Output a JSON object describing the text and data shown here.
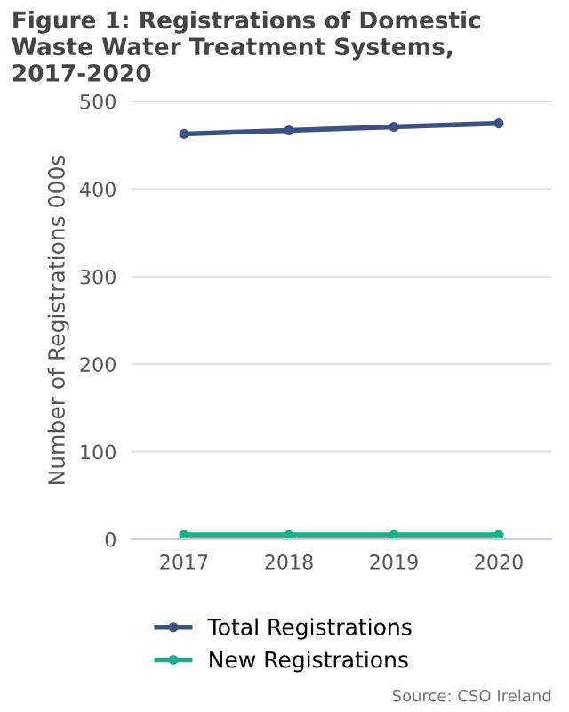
{
  "chart_data": {
    "type": "line",
    "title": "Figure 1: Registrations of Domestic Waste Water Treatment Systems, 2017-2020",
    "categories": [
      "2017",
      "2018",
      "2019",
      "2020"
    ],
    "series": [
      {
        "name": "Total Registrations",
        "color": "#3c5287",
        "values": [
          463,
          467,
          471,
          475
        ]
      },
      {
        "name": "New Registrations",
        "color": "#1bb088",
        "values": [
          5,
          5,
          5,
          5
        ]
      }
    ],
    "ylabel": "Number of Registrations 000s",
    "ylim": [
      0,
      500
    ],
    "yticks": [
      0,
      100,
      200,
      300,
      400,
      500
    ],
    "grid": "y",
    "legend": "bottom",
    "marker": "circle",
    "annotations": [
      "Source: CSO Ireland"
    ]
  }
}
